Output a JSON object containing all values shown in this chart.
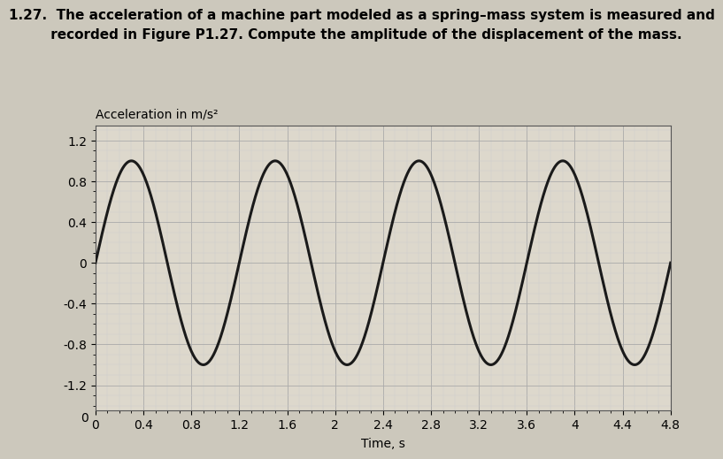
{
  "title_line1": "1.27.  The acceleration of a machine part modeled as a spring–mass system is measured and",
  "title_line2": "         recorded in Figure P1.27. Compute the amplitude of the displacement of the mass.",
  "ylabel_above": "Acceleration in m/s²",
  "xlabel": "Time, s",
  "amplitude": 1.0,
  "period": 1.2,
  "phase": 0.0,
  "t_start": 0.0,
  "t_end": 4.8,
  "ylim": [
    -1.45,
    1.35
  ],
  "xlim": [
    0,
    4.8
  ],
  "yticks": [
    -1.2,
    -0.8,
    -0.4,
    0,
    0.4,
    0.8,
    1.2
  ],
  "xticks": [
    0,
    0.4,
    0.8,
    1.2,
    1.6,
    2,
    2.4,
    2.8,
    3.2,
    3.6,
    4.0,
    4.4,
    4.8
  ],
  "line_color": "#1a1a1a",
  "line_width": 2.2,
  "major_grid_color": "#aaaaaa",
  "major_grid_linewidth": 0.6,
  "minor_grid_color": "#cccccc",
  "minor_grid_linewidth": 0.3,
  "bg_color": "#ddd8cc",
  "fig_bg_color": "#ccc8bc",
  "ylabel_fontsize": 10,
  "xlabel_fontsize": 10,
  "tick_fontsize": 10,
  "title_fontsize": 11
}
